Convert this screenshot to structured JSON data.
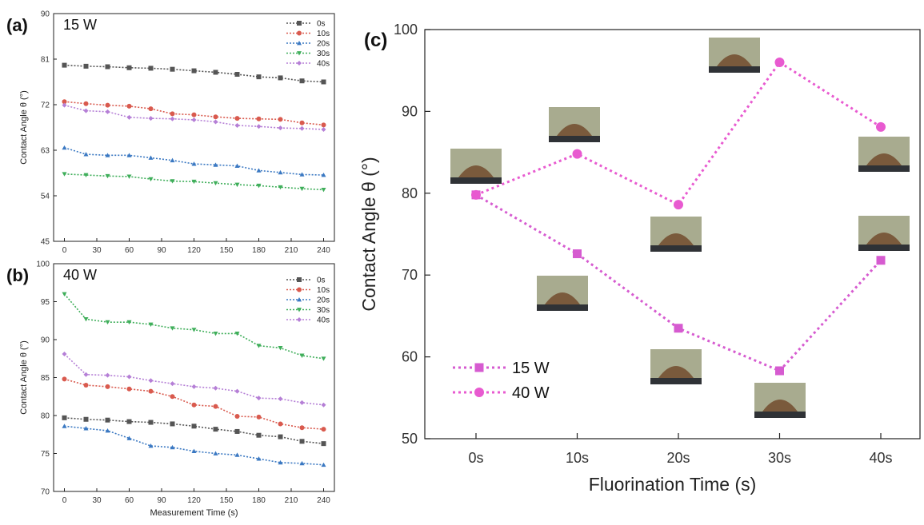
{
  "chart_data": [
    {
      "type": "line",
      "panel_label": "(a)",
      "power_label": "15 W",
      "xlabel": "",
      "ylabel": "Contact Angle θ (°)",
      "ylim": [
        45,
        90
      ],
      "yticks": [
        45,
        54,
        63,
        72,
        81,
        90
      ],
      "xlim": [
        -10,
        250
      ],
      "xticks": [
        0,
        30,
        60,
        90,
        120,
        150,
        180,
        210,
        240
      ],
      "x": [
        0,
        20,
        40,
        60,
        80,
        100,
        120,
        140,
        160,
        180,
        200,
        220,
        240
      ],
      "legend_position": "top-right",
      "series": [
        {
          "name": "0s",
          "color": "#555555",
          "marker": "square",
          "values": [
            79.8,
            79.6,
            79.5,
            79.3,
            79.2,
            79.0,
            78.7,
            78.4,
            78.0,
            77.5,
            77.3,
            76.7,
            76.5
          ]
        },
        {
          "name": "10s",
          "color": "#d95a4e",
          "marker": "circle",
          "values": [
            72.6,
            72.2,
            71.9,
            71.7,
            71.2,
            70.2,
            70.0,
            69.6,
            69.3,
            69.2,
            69.1,
            68.4,
            68.0
          ]
        },
        {
          "name": "20s",
          "color": "#3a78c2",
          "marker": "triangle-up",
          "values": [
            63.5,
            62.2,
            62.0,
            62.0,
            61.5,
            61.0,
            60.3,
            60.1,
            59.9,
            59.0,
            58.6,
            58.2,
            58.1
          ]
        },
        {
          "name": "30s",
          "color": "#3fae5a",
          "marker": "triangle-down",
          "values": [
            58.3,
            58.1,
            57.9,
            57.8,
            57.3,
            56.9,
            56.8,
            56.5,
            56.2,
            56.0,
            55.7,
            55.4,
            55.2
          ]
        },
        {
          "name": "40s",
          "color": "#b57fd6",
          "marker": "diamond",
          "values": [
            71.9,
            70.8,
            70.6,
            69.5,
            69.3,
            69.2,
            69.0,
            68.6,
            67.9,
            67.7,
            67.4,
            67.3,
            67.1
          ]
        }
      ]
    },
    {
      "type": "line",
      "panel_label": "(b)",
      "power_label": "40 W",
      "xlabel": "Measurement Time (s)",
      "ylabel": "Contact Angle θ (°)",
      "ylim": [
        70,
        100
      ],
      "yticks": [
        70,
        75,
        80,
        85,
        90,
        95,
        100
      ],
      "xlim": [
        -10,
        250
      ],
      "xticks": [
        0,
        30,
        60,
        90,
        120,
        150,
        180,
        210,
        240
      ],
      "x": [
        0,
        20,
        40,
        60,
        80,
        100,
        120,
        140,
        160,
        180,
        200,
        220,
        240
      ],
      "legend_position": "top-right",
      "series": [
        {
          "name": "0s",
          "color": "#555555",
          "marker": "square",
          "values": [
            79.7,
            79.5,
            79.4,
            79.2,
            79.1,
            78.9,
            78.6,
            78.2,
            77.9,
            77.4,
            77.2,
            76.6,
            76.3
          ]
        },
        {
          "name": "10s",
          "color": "#d95a4e",
          "marker": "circle",
          "values": [
            84.8,
            84.0,
            83.8,
            83.5,
            83.2,
            82.5,
            81.4,
            81.2,
            79.9,
            79.8,
            78.9,
            78.4,
            78.2
          ]
        },
        {
          "name": "20s",
          "color": "#3a78c2",
          "marker": "triangle-up",
          "values": [
            78.6,
            78.3,
            78.0,
            77.0,
            76.0,
            75.8,
            75.3,
            75.0,
            74.8,
            74.3,
            73.8,
            73.7,
            73.5
          ]
        },
        {
          "name": "30s",
          "color": "#3fae5a",
          "marker": "triangle-down",
          "values": [
            96.0,
            92.7,
            92.3,
            92.3,
            92.0,
            91.5,
            91.3,
            90.8,
            90.8,
            89.2,
            88.9,
            87.9,
            87.5
          ]
        },
        {
          "name": "40s",
          "color": "#b57fd6",
          "marker": "diamond",
          "values": [
            88.1,
            85.4,
            85.3,
            85.1,
            84.6,
            84.2,
            83.8,
            83.6,
            83.2,
            82.3,
            82.2,
            81.7,
            81.4
          ]
        }
      ]
    },
    {
      "type": "line",
      "panel_label": "(c)",
      "xlabel": "Fluorination Time (s)",
      "ylabel": "Contact Angle θ (°)",
      "ylim": [
        50,
        100
      ],
      "yticks": [
        50,
        60,
        70,
        80,
        90,
        100
      ],
      "categories": [
        "0s",
        "10s",
        "20s",
        "30s",
        "40s"
      ],
      "legend_position": "bottom-left",
      "droplet_images": "photographs of water droplets on substrate next to each data point",
      "series": [
        {
          "name": "15 W",
          "color": "#d65bd0",
          "marker": "square",
          "values": [
            79.8,
            72.6,
            63.5,
            58.3,
            71.8
          ]
        },
        {
          "name": "40 W",
          "color": "#e85ad0",
          "marker": "circle",
          "values": [
            79.8,
            84.8,
            78.6,
            96.0,
            88.1
          ]
        }
      ]
    }
  ]
}
